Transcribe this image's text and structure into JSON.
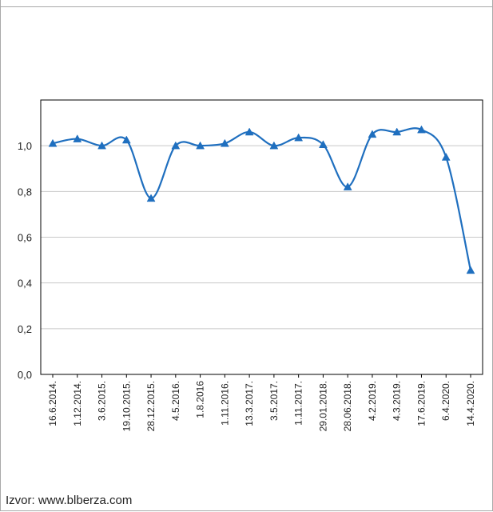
{
  "title": "",
  "source": "Izvor: www.blberza.com",
  "colors": {
    "line": "#1f6fbf",
    "grid": "#c8c8c8",
    "axis": "#000000"
  },
  "chart_data": {
    "type": "line",
    "categories": [
      "16.6.2014.",
      "1.12.2014.",
      "3.6.2015.",
      "19.10.2015.",
      "28.12.2015.",
      "4.5.2016.",
      "1.8.2016",
      "1.11.2016.",
      "13.3.2017.",
      "3.5.2017.",
      "1.11.2017.",
      "29.01.2018.",
      "28.06.2018.",
      "4.2.2019.",
      "4.3.2019.",
      "17.6.2019.",
      "6.4.2020.",
      "14.4.2020."
    ],
    "series": [
      {
        "values": [
          1.01,
          1.03,
          1.0,
          1.025,
          0.77,
          1.0,
          1.0,
          1.01,
          1.06,
          1.0,
          1.035,
          1.005,
          0.82,
          1.05,
          1.06,
          1.07,
          0.95,
          0.455
        ]
      }
    ],
    "yticks": [
      "0,0",
      "0,2",
      "0,4",
      "0,6",
      "0,8",
      "1,0"
    ],
    "ylim": [
      0,
      1.2
    ],
    "grid": true,
    "marker": "triangle",
    "smooth": true
  }
}
